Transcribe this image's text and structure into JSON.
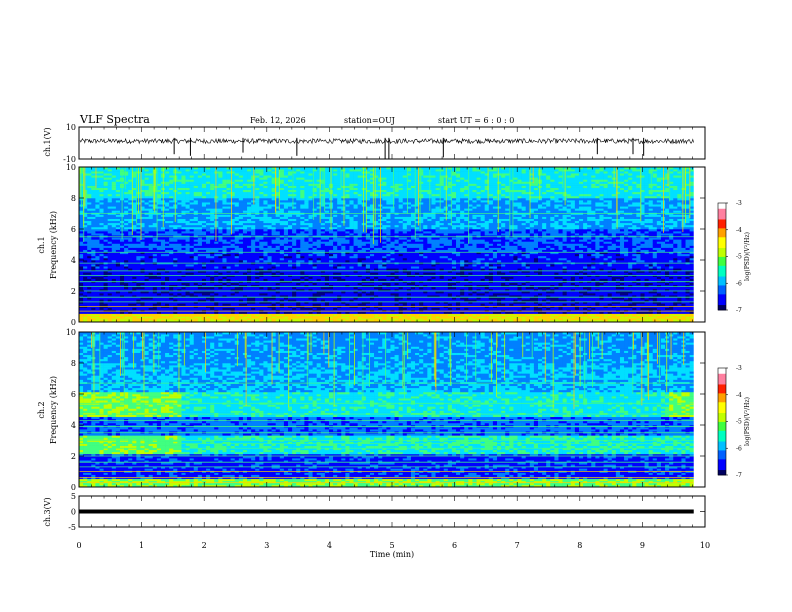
{
  "header": {
    "title": "VLF Spectra",
    "date": "Feb. 12, 2026",
    "station": "station=OUJ",
    "start": "start  UT =   6  : 0   : 0"
  },
  "chart_data": [
    {
      "type": "line",
      "name": "ch1-waveform",
      "ylabel": "ch.1(V)",
      "ylim": [
        -10,
        10
      ],
      "yticks": [
        "10",
        "-10"
      ],
      "baseline": 1.2,
      "spikes": [
        {
          "t": 1.52,
          "v": -7
        },
        {
          "t": 1.78,
          "v": -8
        },
        {
          "t": 2.62,
          "v": -6
        },
        {
          "t": 3.48,
          "v": -8
        },
        {
          "t": 4.89,
          "v": -10
        },
        {
          "t": 4.95,
          "v": -10
        },
        {
          "t": 5.82,
          "v": -9
        },
        {
          "t": 8.28,
          "v": -7
        },
        {
          "t": 8.85,
          "v": -7
        },
        {
          "t": 9.02,
          "v": -8
        }
      ]
    },
    {
      "type": "heatmap",
      "name": "ch1-spectrogram",
      "ylabel": "Frequency (kHz)",
      "channel_label": "ch.1",
      "ylim": [
        0,
        10
      ],
      "yticks": [
        "0",
        "2",
        "4",
        "6",
        "8",
        "10"
      ],
      "colorbar": {
        "label": "log(PSD)(V²/Hz)",
        "ticks": [
          "-3",
          "-4",
          "-5",
          "-6",
          "-7"
        ],
        "range": [
          -7,
          -3
        ]
      },
      "lines_khz": [
        0.2,
        0.35,
        0.5,
        0.7,
        1.0,
        1.3,
        1.6,
        2.0,
        2.3,
        2.6,
        3.0,
        3.3,
        3.8,
        4.5,
        5.5,
        7.0
      ]
    },
    {
      "type": "heatmap",
      "name": "ch2-spectrogram",
      "ylabel": "Frequency (kHz)",
      "channel_label": "ch.2",
      "ylim": [
        0,
        10
      ],
      "yticks": [
        "0",
        "2",
        "4",
        "6",
        "8",
        "10"
      ],
      "colorbar": {
        "label": "log(PSD)(V²/Hz)",
        "ticks": [
          "-3",
          "-4",
          "-5",
          "-6",
          "-7"
        ],
        "range": [
          -7,
          -3
        ]
      },
      "lines_khz": [
        0.3,
        0.6,
        1.0,
        1.3,
        1.6,
        2.0,
        2.5,
        2.8,
        3.0,
        3.5,
        3.9,
        4.3,
        4.7,
        5.4,
        6.7
      ]
    },
    {
      "type": "line",
      "name": "ch3-waveform",
      "ylabel": "ch.3(V)",
      "ylim": [
        -5,
        5
      ],
      "yticks": [
        "5",
        "0",
        "-5"
      ],
      "baseline": 0
    }
  ],
  "xaxis": {
    "label": "Time (min)",
    "range": [
      0,
      10
    ],
    "ticks": [
      "0",
      "1",
      "2",
      "3",
      "4",
      "5",
      "6",
      "7",
      "8",
      "9",
      "10"
    ]
  },
  "colors": {
    "scale": [
      "#000000",
      "#000080",
      "#0000ff",
      "#0080ff",
      "#00e0ff",
      "#40ff80",
      "#c0ff00",
      "#ffd000",
      "#ff0000"
    ]
  }
}
